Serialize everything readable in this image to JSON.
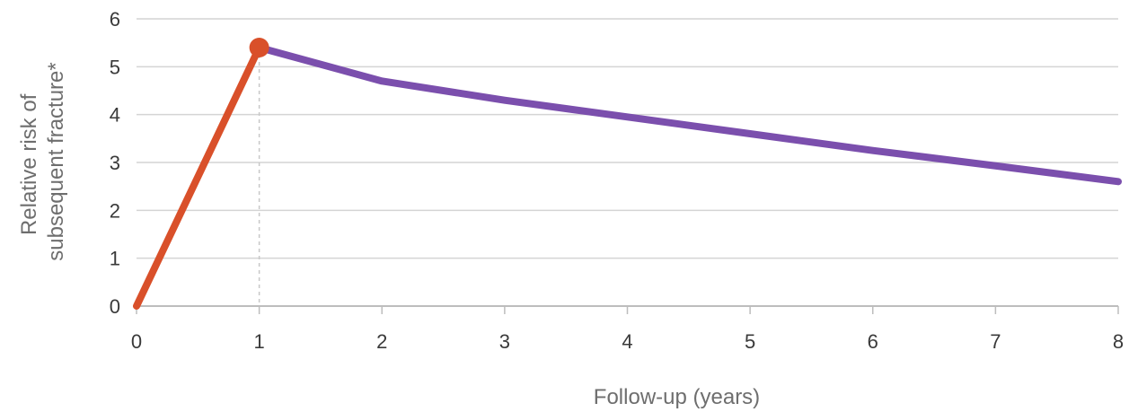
{
  "chart_data": {
    "type": "line",
    "title": "",
    "xlabel": "Follow-up (years)",
    "ylabel_lines": [
      "Relative risk of",
      "subsequent fracture*"
    ],
    "xlim": [
      0,
      8
    ],
    "ylim": [
      0,
      6
    ],
    "x_ticks": [
      "0",
      "1",
      "2",
      "3",
      "4",
      "5",
      "6",
      "7",
      "8"
    ],
    "y_ticks": [
      "0",
      "1",
      "2",
      "3",
      "4",
      "5",
      "6"
    ],
    "grid": "horizontal",
    "highlight_point": {
      "x": 1,
      "y": 5.4
    },
    "reference_line_x": 1,
    "series": [
      {
        "color": "#d9502a",
        "points": [
          [
            0,
            0
          ],
          [
            1,
            5.4
          ]
        ]
      },
      {
        "color": "#7b4fad",
        "points": [
          [
            1,
            5.4
          ],
          [
            2,
            4.7
          ],
          [
            3,
            4.3
          ],
          [
            4,
            3.95
          ],
          [
            5,
            3.6
          ],
          [
            6,
            3.25
          ],
          [
            7,
            2.93
          ],
          [
            8,
            2.6
          ]
        ]
      }
    ]
  }
}
